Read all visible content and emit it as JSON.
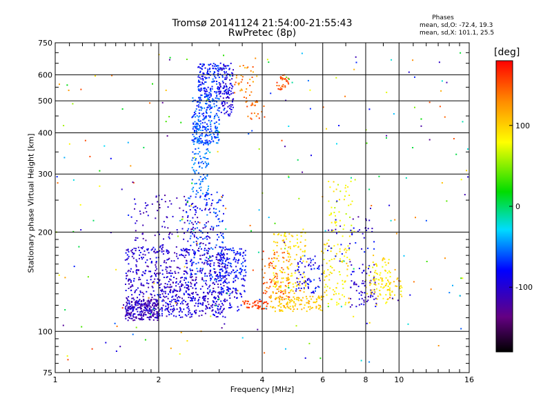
{
  "chart_data": {
    "type": "scatter",
    "title": "Tromsø 20141124 21:54:00-21:55:43",
    "subtitle": "RwPretec (8p)",
    "xlabel": "Frequency [MHz]",
    "ylabel": "Stationary phase Virtual Height [km]",
    "xscale": "log",
    "yscale": "log",
    "xlim": [
      1,
      16
    ],
    "ylim": [
      75,
      750
    ],
    "xticks": [
      1,
      2,
      4,
      6,
      8,
      10,
      16
    ],
    "yticks": [
      75,
      100,
      200,
      300,
      400,
      500,
      600,
      750
    ],
    "x_gridlines": [
      2,
      4,
      6,
      8,
      10
    ],
    "y_gridlines": [
      100,
      200,
      300,
      400,
      500,
      600
    ],
    "grid": true,
    "colorbar": {
      "label": "[deg]",
      "ticks": [
        100,
        0,
        -100
      ],
      "range": [
        -180,
        180
      ],
      "colormap": "rainbow"
    },
    "phase_stats": {
      "title": "Phases",
      "line_o": "mean, sd,O: -72.4, 19.3",
      "line_x": "mean, sd,X: 101.1, 25.5"
    },
    "clusters": [
      {
        "fx": [
          1.6,
          2.0
        ],
        "hy": [
          108,
          125
        ],
        "p": [
          -130,
          -95
        ],
        "n": 220
      },
      {
        "fx": [
          1.6,
          3.2
        ],
        "hy": [
          110,
          180
        ],
        "p": [
          -125,
          -80
        ],
        "n": 700
      },
      {
        "fx": [
          1.7,
          2.9
        ],
        "hy": [
          180,
          260
        ],
        "p": [
          -125,
          -90
        ],
        "n": 130
      },
      {
        "fx": [
          2.0,
          3.5
        ],
        "hy": [
          115,
          135
        ],
        "p": [
          -115,
          -70
        ],
        "n": 130
      },
      {
        "fx": [
          2.4,
          3.1
        ],
        "hy": [
          140,
          260
        ],
        "p": [
          -90,
          -50
        ],
        "n": 160
      },
      {
        "fx": [
          2.5,
          2.8
        ],
        "hy": [
          260,
          380
        ],
        "p": [
          -70,
          -40
        ],
        "n": 90
      },
      {
        "fx": [
          2.5,
          3.0
        ],
        "hy": [
          370,
          420
        ],
        "p": [
          -80,
          -40
        ],
        "n": 120
      },
      {
        "fx": [
          2.5,
          3.0
        ],
        "hy": [
          420,
          520
        ],
        "p": [
          -80,
          -45
        ],
        "n": 140
      },
      {
        "fx": [
          2.6,
          3.2
        ],
        "hy": [
          520,
          650
        ],
        "p": [
          -95,
          -55
        ],
        "n": 170
      },
      {
        "fx": [
          3.0,
          3.3
        ],
        "hy": [
          450,
          650
        ],
        "p": [
          -110,
          -80
        ],
        "n": 100
      },
      {
        "fx": [
          3.0,
          3.6
        ],
        "hy": [
          130,
          180
        ],
        "p": [
          -100,
          -60
        ],
        "n": 150
      },
      {
        "fx": [
          3.3,
          3.9
        ],
        "hy": [
          480,
          640
        ],
        "p": [
          110,
          160
        ],
        "n": 40
      },
      {
        "fx": [
          3.6,
          4.1
        ],
        "hy": [
          440,
          500
        ],
        "p": [
          130,
          160
        ],
        "n": 20
      },
      {
        "fx": [
          4.4,
          4.8
        ],
        "hy": [
          540,
          600
        ],
        "p": [
          140,
          165
        ],
        "n": 30
      },
      {
        "fx": [
          3.5,
          4.2
        ],
        "hy": [
          117,
          124
        ],
        "p": [
          150,
          170
        ],
        "n": 50
      },
      {
        "fx": [
          4.0,
          4.8
        ],
        "hy": [
          125,
          175
        ],
        "p": [
          130,
          165
        ],
        "n": 90
      },
      {
        "fx": [
          4.2,
          6.0
        ],
        "hy": [
          115,
          128
        ],
        "p": [
          90,
          120
        ],
        "n": 120
      },
      {
        "fx": [
          4.3,
          5.4
        ],
        "hy": [
          130,
          200
        ],
        "p": [
          80,
          110
        ],
        "n": 140
      },
      {
        "fx": [
          5.0,
          6.0
        ],
        "hy": [
          130,
          170
        ],
        "p": [
          -110,
          -60
        ],
        "n": 70
      },
      {
        "fx": [
          6.0,
          7.2
        ],
        "hy": [
          120,
          190
        ],
        "p": [
          70,
          110
        ],
        "n": 90
      },
      {
        "fx": [
          6.2,
          7.5
        ],
        "hy": [
          190,
          290
        ],
        "p": [
          60,
          100
        ],
        "n": 50
      },
      {
        "fx": [
          7.2,
          8.6
        ],
        "hy": [
          118,
          160
        ],
        "p": [
          -120,
          -80
        ],
        "n": 70
      },
      {
        "fx": [
          8.0,
          9.5
        ],
        "hy": [
          120,
          170
        ],
        "p": [
          70,
          110
        ],
        "n": 70
      },
      {
        "fx": [
          8.4,
          10.2
        ],
        "hy": [
          125,
          145
        ],
        "p": [
          80,
          110
        ],
        "n": 40
      },
      {
        "fx": [
          6.2,
          8.5
        ],
        "hy": [
          160,
          220
        ],
        "p": [
          -120,
          -70
        ],
        "n": 40
      },
      {
        "fx": [
          1.0,
          16.0
        ],
        "hy": [
          80,
          700
        ],
        "p": [
          -130,
          160
        ],
        "n": 260
      }
    ]
  }
}
